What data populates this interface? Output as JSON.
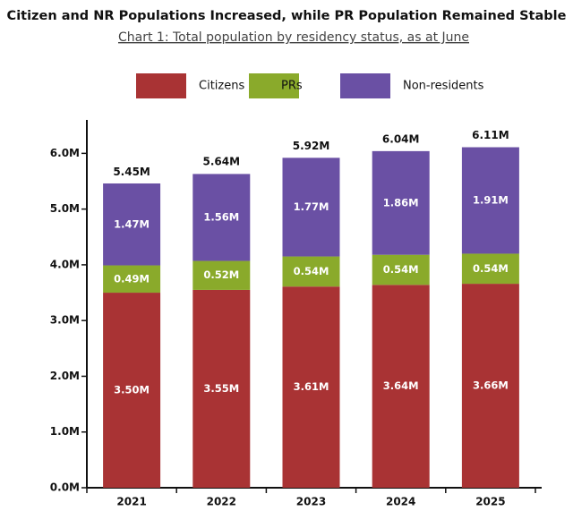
{
  "chart_data": {
    "type": "stacked-bar",
    "title": "Citizen and NR Populations Increased, while PR Population Remained Stable",
    "subtitle": "Chart 1: Total population by residency status, as at June",
    "categories": [
      "2021",
      "2022",
      "2023",
      "2024",
      "2025"
    ],
    "series": [
      {
        "name": "Citizens",
        "color": "#a93334",
        "values": [
          3.5,
          3.55,
          3.61,
          3.64,
          3.66
        ],
        "value_labels": [
          "3.50M",
          "3.55M",
          "3.61M",
          "3.64M",
          "3.66M"
        ]
      },
      {
        "name": "PRs",
        "color": "#8aaa2b",
        "values": [
          0.49,
          0.52,
          0.54,
          0.54,
          0.54
        ],
        "value_labels": [
          "0.49M",
          "0.52M",
          "0.54M",
          "0.54M",
          "0.54M"
        ]
      },
      {
        "name": "Non-residents",
        "color": "#6a50a4",
        "values": [
          1.47,
          1.56,
          1.77,
          1.86,
          1.91
        ],
        "value_labels": [
          "1.47M",
          "1.56M",
          "1.77M",
          "1.86M",
          "1.91M"
        ]
      }
    ],
    "totals": {
      "values": [
        5.45,
        5.64,
        5.92,
        6.04,
        6.11
      ],
      "value_labels": [
        "5.45M",
        "5.64M",
        "5.92M",
        "6.04M",
        "6.11M"
      ]
    },
    "ylim": [
      0,
      6.6
    ],
    "yticks": [
      {
        "value": 0,
        "label": "0.0M"
      },
      {
        "value": 1,
        "label": "1.0M"
      },
      {
        "value": 2,
        "label": "2.0M"
      },
      {
        "value": 3,
        "label": "3.0M"
      },
      {
        "value": 4,
        "label": "4.0M"
      },
      {
        "value": 5,
        "label": "5.0M"
      },
      {
        "value": 6,
        "label": "6.0M"
      }
    ],
    "legend": "top"
  }
}
